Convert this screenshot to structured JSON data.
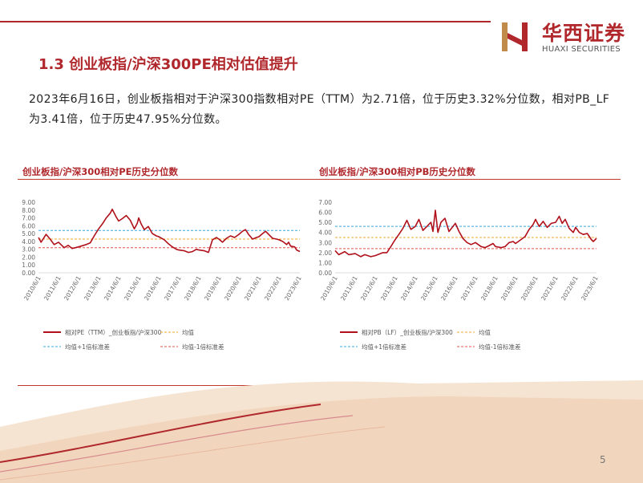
{
  "header": {
    "brand_cn": "华西证券",
    "brand_en": "HUAXI SECURITIES",
    "accent_color": "#b0272c"
  },
  "section_title": "1.3 创业板指/沪深300PE相对估值提升",
  "description": "2023年6月16日，创业板指相对于沪深300指数相对PE（TTM）为2.71倍，位于历史3.32%分位数，相对PB_LF为3.41倍，位于历史47.95%分位数。",
  "page_number": "5",
  "chart_data": [
    {
      "type": "line",
      "title": "创业板指/沪深300相对PE历史分位数",
      "ylim": [
        0,
        9
      ],
      "yticks": [
        "0.00",
        "1.00",
        "2.00",
        "3.00",
        "4.00",
        "5.00",
        "6.00",
        "7.00",
        "8.00",
        "9.00"
      ],
      "x_start": 2010.42,
      "x_end": 2023.46,
      "xticks": [
        {
          "label": "2010/6/1",
          "t": 2010.42
        },
        {
          "label": "2011/6/1",
          "t": 2011.42
        },
        {
          "label": "2012/6/1",
          "t": 2012.42
        },
        {
          "label": "2013/6/1",
          "t": 2013.42
        },
        {
          "label": "2014/6/1",
          "t": 2014.42
        },
        {
          "label": "2015/6/1",
          "t": 2015.42
        },
        {
          "label": "2016/6/1",
          "t": 2016.42
        },
        {
          "label": "2017/6/1",
          "t": 2017.42
        },
        {
          "label": "2018/6/1",
          "t": 2018.42
        },
        {
          "label": "2019/6/1",
          "t": 2019.42
        },
        {
          "label": "2020/6/1",
          "t": 2020.42
        },
        {
          "label": "2021/6/1",
          "t": 2021.42
        },
        {
          "label": "2022/6/1",
          "t": 2022.42
        },
        {
          "label": "2023/6/1",
          "t": 2023.42
        }
      ],
      "series": [
        {
          "name": "相对PE（TTM）_创业板指/沪深300",
          "color": "#b0111b",
          "style": "solid",
          "points": [
            [
              2010.42,
              4.5
            ],
            [
              2010.55,
              3.9
            ],
            [
              2010.8,
              4.9
            ],
            [
              2011.0,
              4.3
            ],
            [
              2011.2,
              3.6
            ],
            [
              2011.42,
              3.9
            ],
            [
              2011.7,
              3.2
            ],
            [
              2011.9,
              3.5
            ],
            [
              2012.1,
              3.1
            ],
            [
              2012.42,
              3.3
            ],
            [
              2012.8,
              3.6
            ],
            [
              2013.0,
              3.8
            ],
            [
              2013.2,
              4.7
            ],
            [
              2013.42,
              5.6
            ],
            [
              2013.6,
              6.2
            ],
            [
              2013.8,
              7.0
            ],
            [
              2014.0,
              7.6
            ],
            [
              2014.1,
              8.1
            ],
            [
              2014.3,
              7.1
            ],
            [
              2014.42,
              6.6
            ],
            [
              2014.6,
              6.9
            ],
            [
              2014.8,
              7.3
            ],
            [
              2015.0,
              6.7
            ],
            [
              2015.2,
              5.6
            ],
            [
              2015.35,
              6.3
            ],
            [
              2015.42,
              7.0
            ],
            [
              2015.55,
              6.2
            ],
            [
              2015.7,
              5.5
            ],
            [
              2015.9,
              5.9
            ],
            [
              2016.1,
              5.0
            ],
            [
              2016.3,
              4.7
            ],
            [
              2016.42,
              4.6
            ],
            [
              2016.7,
              4.2
            ],
            [
              2016.9,
              3.7
            ],
            [
              2017.1,
              3.3
            ],
            [
              2017.3,
              3.0
            ],
            [
              2017.42,
              2.9
            ],
            [
              2017.7,
              2.8
            ],
            [
              2017.9,
              2.6
            ],
            [
              2018.1,
              2.7
            ],
            [
              2018.3,
              3.0
            ],
            [
              2018.42,
              2.9
            ],
            [
              2018.7,
              2.8
            ],
            [
              2018.9,
              2.6
            ],
            [
              2019.1,
              4.2
            ],
            [
              2019.3,
              4.5
            ],
            [
              2019.42,
              4.3
            ],
            [
              2019.6,
              3.9
            ],
            [
              2019.8,
              4.4
            ],
            [
              2020.0,
              4.7
            ],
            [
              2020.2,
              4.5
            ],
            [
              2020.42,
              4.9
            ],
            [
              2020.6,
              5.3
            ],
            [
              2020.75,
              5.5
            ],
            [
              2020.9,
              4.9
            ],
            [
              2021.1,
              4.3
            ],
            [
              2021.3,
              4.5
            ],
            [
              2021.42,
              4.6
            ],
            [
              2021.6,
              5.0
            ],
            [
              2021.75,
              5.3
            ],
            [
              2021.9,
              4.9
            ],
            [
              2022.1,
              4.4
            ],
            [
              2022.3,
              4.3
            ],
            [
              2022.42,
              4.2
            ],
            [
              2022.6,
              4.0
            ],
            [
              2022.8,
              3.6
            ],
            [
              2022.9,
              3.9
            ],
            [
              2023.0,
              3.4
            ],
            [
              2023.2,
              3.3
            ],
            [
              2023.3,
              2.9
            ],
            [
              2023.46,
              2.71
            ]
          ]
        },
        {
          "name": "均值",
          "color": "#f0a830",
          "style": "dashed",
          "value": 4.3
        },
        {
          "name": "均值+1倍标准差",
          "color": "#36a9e1",
          "style": "dashed",
          "value": 5.4
        },
        {
          "name": "均值-1倍标准差",
          "color": "#e0534a",
          "style": "dashed",
          "value": 3.2
        }
      ]
    },
    {
      "type": "line",
      "title": "创业板指/沪深300相对PB历史分位数",
      "ylim": [
        0,
        7
      ],
      "yticks": [
        "0.00",
        "1.00",
        "2.00",
        "3.00",
        "4.00",
        "5.00",
        "6.00",
        "7.00"
      ],
      "x_start": 2010.42,
      "x_end": 2023.46,
      "xticks": [
        {
          "label": "2010/6/1",
          "t": 2010.42
        },
        {
          "label": "2011/6/1",
          "t": 2011.42
        },
        {
          "label": "2012/6/1",
          "t": 2012.42
        },
        {
          "label": "2013/6/1",
          "t": 2013.42
        },
        {
          "label": "2014/6/1",
          "t": 2014.42
        },
        {
          "label": "2015/6/1",
          "t": 2015.42
        },
        {
          "label": "2016/6/1",
          "t": 2016.42
        },
        {
          "label": "2017/6/1",
          "t": 2017.42
        },
        {
          "label": "2018/6/1",
          "t": 2018.42
        },
        {
          "label": "2019/6/1",
          "t": 2019.42
        },
        {
          "label": "2020/6/1",
          "t": 2020.42
        },
        {
          "label": "2021/6/1",
          "t": 2021.42
        },
        {
          "label": "2022/6/1",
          "t": 2022.42
        },
        {
          "label": "2023/6/1",
          "t": 2023.42
        }
      ],
      "series": [
        {
          "name": "相对PB（LF）_创业板指/沪深300",
          "color": "#b0111b",
          "style": "solid",
          "points": [
            [
              2010.42,
              2.2
            ],
            [
              2010.6,
              1.8
            ],
            [
              2010.9,
              2.1
            ],
            [
              2011.1,
              1.8
            ],
            [
              2011.42,
              1.9
            ],
            [
              2011.7,
              1.6
            ],
            [
              2011.9,
              1.8
            ],
            [
              2012.2,
              1.6
            ],
            [
              2012.42,
              1.7
            ],
            [
              2012.8,
              2.0
            ],
            [
              2013.0,
              2.0
            ],
            [
              2013.2,
              2.6
            ],
            [
              2013.42,
              3.3
            ],
            [
              2013.6,
              3.8
            ],
            [
              2013.8,
              4.4
            ],
            [
              2014.0,
              5.2
            ],
            [
              2014.2,
              4.3
            ],
            [
              2014.42,
              4.6
            ],
            [
              2014.6,
              5.3
            ],
            [
              2014.8,
              4.2
            ],
            [
              2015.0,
              4.6
            ],
            [
              2015.2,
              5.0
            ],
            [
              2015.3,
              4.1
            ],
            [
              2015.42,
              6.2
            ],
            [
              2015.55,
              4.0
            ],
            [
              2015.7,
              5.0
            ],
            [
              2015.9,
              5.4
            ],
            [
              2016.1,
              4.1
            ],
            [
              2016.3,
              4.6
            ],
            [
              2016.42,
              4.9
            ],
            [
              2016.6,
              4.1
            ],
            [
              2016.8,
              3.4
            ],
            [
              2017.0,
              3.0
            ],
            [
              2017.2,
              2.8
            ],
            [
              2017.42,
              3.0
            ],
            [
              2017.7,
              2.6
            ],
            [
              2017.9,
              2.5
            ],
            [
              2018.1,
              2.7
            ],
            [
              2018.3,
              2.9
            ],
            [
              2018.42,
              2.6
            ],
            [
              2018.7,
              2.5
            ],
            [
              2018.9,
              2.6
            ],
            [
              2019.1,
              3.0
            ],
            [
              2019.3,
              3.1
            ],
            [
              2019.42,
              2.9
            ],
            [
              2019.7,
              3.3
            ],
            [
              2019.9,
              3.6
            ],
            [
              2020.1,
              4.3
            ],
            [
              2020.3,
              4.8
            ],
            [
              2020.42,
              5.3
            ],
            [
              2020.6,
              4.6
            ],
            [
              2020.8,
              5.1
            ],
            [
              2021.0,
              4.5
            ],
            [
              2021.2,
              4.9
            ],
            [
              2021.42,
              5.0
            ],
            [
              2021.6,
              5.6
            ],
            [
              2021.75,
              4.9
            ],
            [
              2021.9,
              5.3
            ],
            [
              2022.1,
              4.4
            ],
            [
              2022.3,
              4.0
            ],
            [
              2022.42,
              4.5
            ],
            [
              2022.6,
              4.0
            ],
            [
              2022.8,
              3.8
            ],
            [
              2023.0,
              3.9
            ],
            [
              2023.2,
              3.3
            ],
            [
              2023.3,
              3.1
            ],
            [
              2023.46,
              3.41
            ]
          ]
        },
        {
          "name": "均值",
          "color": "#f0a830",
          "style": "dashed",
          "value": 3.5
        },
        {
          "name": "均值+1倍标准差",
          "color": "#36a9e1",
          "style": "dashed",
          "value": 4.6
        },
        {
          "name": "均值-1倍标准差",
          "color": "#e0534a",
          "style": "dashed",
          "value": 2.4
        }
      ]
    }
  ]
}
